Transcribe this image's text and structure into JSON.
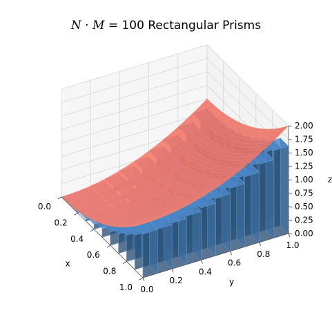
{
  "figure": {
    "title_math": "N·M",
    "title_math_n": "N",
    "title_math_dot": " · ",
    "title_math_m": "M",
    "title_equals": " = ",
    "title_rest": "100 Rectangular Prisms",
    "title": "N·M = 100 Rectangular Prisms"
  },
  "chart_data": {
    "type": "surface3d",
    "title": "N·M = 100 Rectangular Prisms",
    "xlabel": "x",
    "ylabel": "y",
    "zlabel": "z",
    "xlim": [
      0,
      1
    ],
    "ylim": [
      0,
      1
    ],
    "zlim": [
      0,
      2
    ],
    "xticks": [
      "0.0",
      "0.2",
      "0.4",
      "0.6",
      "0.8",
      "1.0"
    ],
    "yticks": [
      "0.0",
      "0.2",
      "0.4",
      "0.6",
      "0.8",
      "1.0"
    ],
    "zticks": [
      "0.00",
      "0.25",
      "0.50",
      "0.75",
      "1.00",
      "1.25",
      "1.50",
      "1.75",
      "2.00"
    ],
    "grid": true,
    "surface": {
      "function": "z = x^2 + y^2",
      "color": "#fa8072",
      "samples": [
        {
          "x": 0,
          "y": 0,
          "z": 0
        },
        {
          "x": 1,
          "y": 0,
          "z": 1
        },
        {
          "x": 0,
          "y": 1,
          "z": 1
        },
        {
          "x": 1,
          "y": 1,
          "z": 2
        }
      ]
    },
    "prisms": {
      "count": 100,
      "grid_n": 10,
      "grid_m": 10,
      "dx": 0.1,
      "dy": 0.1,
      "height_rule": "z(x_i, y_j) at lower-left corner",
      "color": "#4a86c5"
    }
  }
}
